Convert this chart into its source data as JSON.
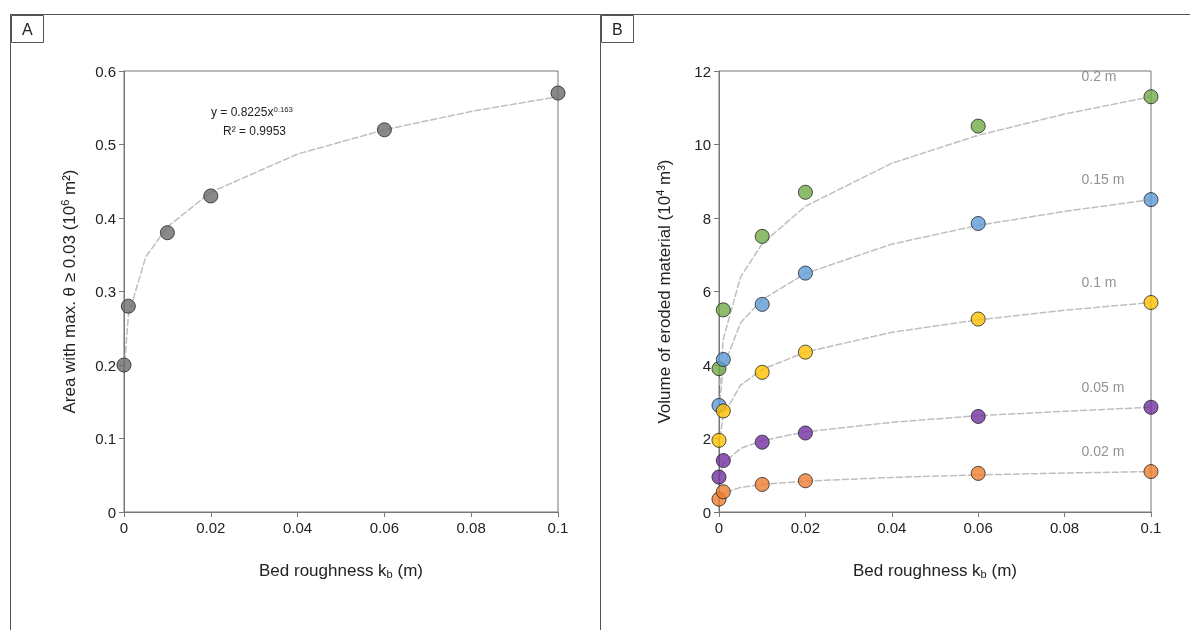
{
  "chart_data": [
    {
      "type": "scatter",
      "title": "A",
      "xlabel": "Bed roughness k$_{b}$ (m)",
      "ylabel": "Area with max. θ ≥ 0.03 (10$^{6}$ m²)",
      "annotations": [
        "y = 0.8225x$^{0.163}$",
        "R² = 0.9953"
      ],
      "xlim": [
        0,
        0.1
      ],
      "xticks": [
        0,
        0.02,
        0.04,
        0.06,
        0.08,
        0.1
      ],
      "ylim": [
        0,
        0.6
      ],
      "yticks": [
        0,
        0.1,
        0.2,
        0.3,
        0.4,
        0.5,
        0.6
      ],
      "grid": false,
      "legend": false,
      "marker": "circle",
      "series": [
        {
          "type": "line",
          "marker": "none",
          "line_style": "dashed",
          "color": "#bfbfbf",
          "x": [
            0.0002,
            0.001,
            0.005,
            0.01,
            0.02,
            0.04,
            0.06,
            0.08,
            0.1
          ],
          "values": [
            0.205,
            0.267,
            0.347,
            0.388,
            0.435,
            0.487,
            0.52,
            0.545,
            0.565
          ]
        },
        {
          "color": "#6b6b6b",
          "x": [
            0,
            0.001,
            0.01,
            0.02,
            0.06,
            0.1
          ],
          "values": [
            0.2,
            0.28,
            0.38,
            0.43,
            0.52,
            0.57
          ]
        }
      ]
    },
    {
      "type": "scatter",
      "title": "B",
      "xlabel": "Bed roughness k$_{b}$ (m)",
      "ylabel": "Volume of eroded material (10$^{4}$ m³)",
      "xlim": [
        0,
        0.1
      ],
      "xticks": [
        0,
        0.02,
        0.04,
        0.06,
        0.08,
        0.1
      ],
      "ylim": [
        0,
        12
      ],
      "yticks": [
        0,
        2,
        4,
        6,
        8,
        10,
        12
      ],
      "grid": false,
      "legend": false,
      "marker": "circle",
      "series": [
        {
          "type": "line",
          "marker": "none",
          "line_style": "dashed",
          "color": "#bfbfbf",
          "x": [
            0.0002,
            0.001,
            0.005,
            0.01,
            0.02,
            0.04,
            0.06,
            0.08,
            0.1
          ],
          "values": [
            3.47,
            4.71,
            6.4,
            7.3,
            8.32,
            9.49,
            10.25,
            10.83,
            11.3
          ]
        },
        {
          "type": "line",
          "marker": "none",
          "line_style": "dashed",
          "color": "#bfbfbf",
          "x": [
            0.0002,
            0.001,
            0.005,
            0.01,
            0.02,
            0.04,
            0.06,
            0.08,
            0.1
          ],
          "values": [
            3.01,
            3.94,
            5.15,
            5.78,
            6.49,
            7.29,
            7.8,
            8.18,
            8.5
          ]
        },
        {
          "type": "line",
          "marker": "none",
          "line_style": "dashed",
          "color": "#bfbfbf",
          "x": [
            0.0002,
            0.001,
            0.005,
            0.01,
            0.02,
            0.04,
            0.06,
            0.08,
            0.1
          ],
          "values": [
            2.02,
            2.64,
            3.45,
            3.88,
            4.35,
            4.89,
            5.23,
            5.49,
            5.7
          ]
        },
        {
          "type": "line",
          "marker": "none",
          "line_style": "dashed",
          "color": "#bfbfbf",
          "x": [
            0.0002,
            0.001,
            0.005,
            0.01,
            0.02,
            0.04,
            0.06,
            0.08,
            0.1
          ],
          "values": [
            1.01,
            1.32,
            1.73,
            1.94,
            2.18,
            2.44,
            2.62,
            2.74,
            2.85
          ]
        },
        {
          "type": "line",
          "marker": "none",
          "line_style": "dashed",
          "color": "#bfbfbf",
          "x": [
            0.0002,
            0.001,
            0.005,
            0.01,
            0.02,
            0.04,
            0.06,
            0.08,
            0.1
          ],
          "values": [
            0.39,
            0.51,
            0.67,
            0.75,
            0.84,
            0.94,
            1.01,
            1.06,
            1.1
          ]
        },
        {
          "name": "0.2 m",
          "color": "#70ad47",
          "x": [
            0,
            0.001,
            0.01,
            0.02,
            0.06,
            0.1
          ],
          "values": [
            3.9,
            5.5,
            7.5,
            8.7,
            10.5,
            11.3
          ]
        },
        {
          "name": "0.15 m",
          "color": "#5b9bd5",
          "x": [
            0,
            0.001,
            0.01,
            0.02,
            0.06,
            0.1
          ],
          "values": [
            2.9,
            4.15,
            5.65,
            6.5,
            7.85,
            8.5
          ]
        },
        {
          "name": "0.1 m",
          "color": "#ffc000",
          "x": [
            0,
            0.001,
            0.01,
            0.02,
            0.06,
            0.1
          ],
          "values": [
            1.95,
            2.75,
            3.8,
            4.35,
            5.25,
            5.7
          ]
        },
        {
          "name": "0.05 m",
          "color": "#7030a0",
          "x": [
            0,
            0.001,
            0.01,
            0.02,
            0.06,
            0.1
          ],
          "values": [
            0.95,
            1.4,
            1.9,
            2.15,
            2.6,
            2.85
          ]
        },
        {
          "name": "0.02 m",
          "color": "#ed7d31",
          "x": [
            0,
            0.001,
            0.01,
            0.02,
            0.06,
            0.1
          ],
          "values": [
            0.35,
            0.55,
            0.75,
            0.85,
            1.05,
            1.1
          ]
        }
      ]
    }
  ]
}
